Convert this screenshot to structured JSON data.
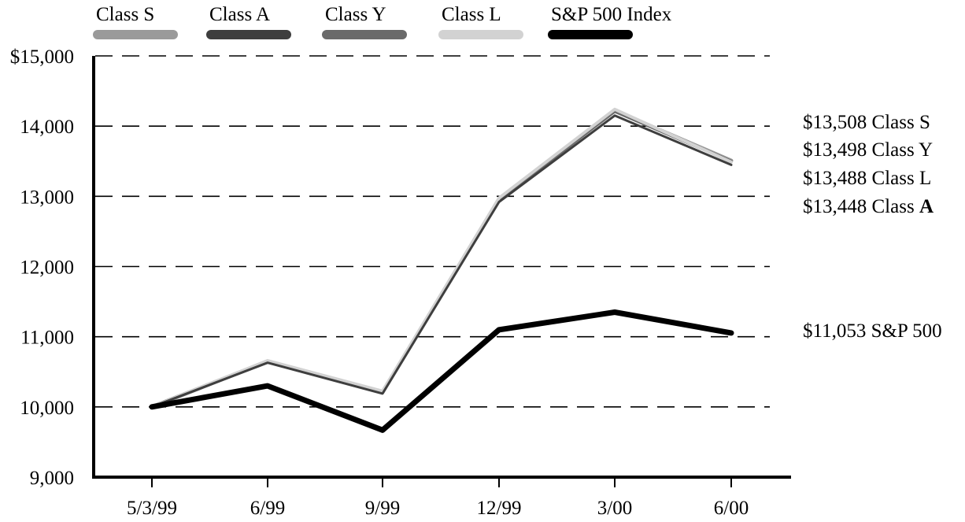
{
  "chart_data": {
    "type": "line",
    "categories": [
      "5/3/99",
      "6/99",
      "9/99",
      "12/99",
      "3/00",
      "6/00"
    ],
    "y_ticks": [
      "$15,000",
      "14,000",
      "13,000",
      "12,000",
      "11,000",
      "10,000",
      "9,000"
    ],
    "y_tick_values": [
      15000,
      14000,
      13000,
      12000,
      11000,
      10000,
      9000
    ],
    "ylim": [
      9000,
      15000
    ],
    "grid": "horizontal dashed",
    "legend": {
      "placement": "top",
      "entries": [
        {
          "label": "Class S",
          "color": "#9a9a9a"
        },
        {
          "label": "Class A",
          "color": "#3e3e3e"
        },
        {
          "label": "Class Y",
          "color": "#6a6a6a"
        },
        {
          "label": "Class L",
          "color": "#d2d2d2"
        },
        {
          "label": "S&P 500 Index",
          "color": "#000000"
        }
      ]
    },
    "series": [
      {
        "name": "Class S",
        "color": "#9a9a9a",
        "values": [
          10000,
          10650,
          10210,
          12960,
          14220,
          13508
        ]
      },
      {
        "name": "Class Y",
        "color": "#6a6a6a",
        "values": [
          10000,
          10645,
          10205,
          12950,
          14210,
          13498
        ]
      },
      {
        "name": "Class L",
        "color": "#d2d2d2",
        "values": [
          10000,
          10660,
          10225,
          12975,
          14240,
          13488
        ]
      },
      {
        "name": "Class A",
        "color": "#3e3e3e",
        "values": [
          10000,
          10630,
          10190,
          12920,
          14150,
          13448
        ]
      },
      {
        "name": "S&P 500 Index",
        "color": "#000000",
        "values": [
          10000,
          10300,
          9670,
          11100,
          11350,
          11053
        ]
      }
    ],
    "end_labels": [
      {
        "value_text": "$13,508",
        "class_text": "Class ",
        "letter": "S",
        "bold": false
      },
      {
        "value_text": "$13,498",
        "class_text": "Class ",
        "letter": "Y",
        "bold": false
      },
      {
        "value_text": "$13,488",
        "class_text": "Class ",
        "letter": "L",
        "bold": false
      },
      {
        "value_text": "$13,448",
        "class_text": "Class ",
        "letter": "A",
        "bold": true
      },
      {
        "value_text": "$11,053",
        "class_text": "S&P 500",
        "letter": "",
        "bold": false
      }
    ]
  }
}
